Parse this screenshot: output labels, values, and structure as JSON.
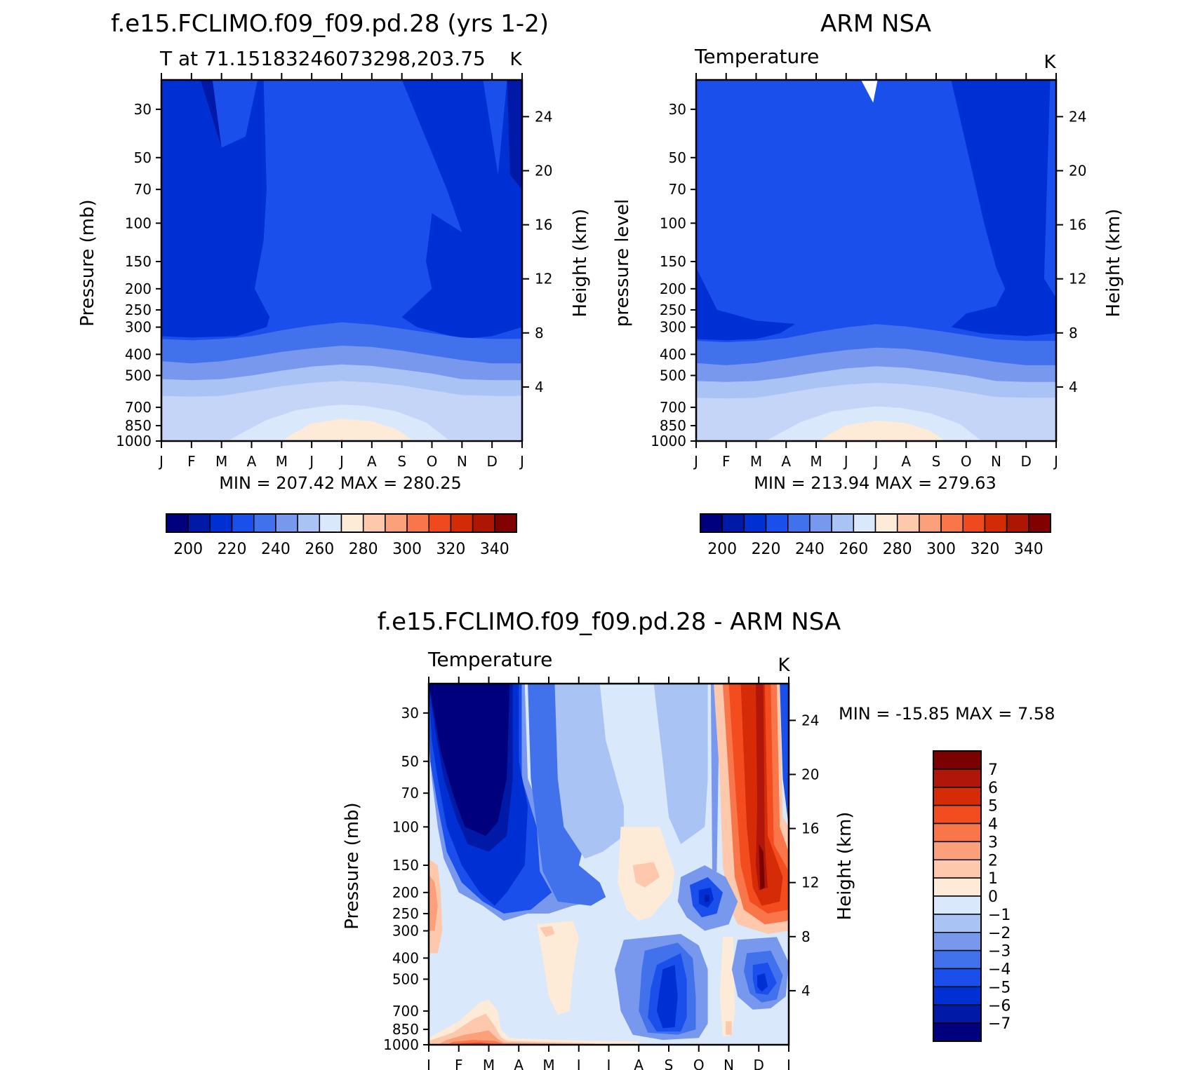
{
  "chart_data": [
    {
      "type": "heatmap",
      "id": "model",
      "title": "f.e15.FCLIMO.f09_f09.pd.28 (yrs 1-2)",
      "subtitle_left": "T at 71.15183246073298,203.75",
      "subtitle_right": "K",
      "ylabel": "Pressure (mb)",
      "ylabel_right": "Height (km)",
      "months": [
        "J",
        "F",
        "M",
        "A",
        "M",
        "J",
        "J",
        "A",
        "S",
        "O",
        "N",
        "D",
        "J"
      ],
      "pressure_ticks": [
        "30",
        "50",
        "70",
        "100",
        "150",
        "200",
        "250",
        "300",
        "400",
        "500",
        "700",
        "850",
        "1000"
      ],
      "height_ticks": [
        "24",
        "20",
        "16",
        "12",
        "8",
        "4"
      ],
      "stats": "MIN =  207.42  MAX =  280.25",
      "colorbar_labels": [
        "200",
        "220",
        "240",
        "260",
        "280",
        "300",
        "320",
        "340"
      ],
      "layers": [
        {
          "level": 262,
          "boundary": [
            [
              0,
              500
            ],
            [
              1,
              505
            ],
            [
              2,
              520
            ],
            [
              3,
              540
            ],
            [
              4,
              555
            ],
            [
              5,
              560
            ],
            [
              6,
              565
            ],
            [
              7,
              562
            ],
            [
              8,
              555
            ],
            [
              9,
              545
            ],
            [
              10,
              525
            ],
            [
              11,
              515
            ],
            [
              12,
              510
            ]
          ]
        },
        {
          "level": 270,
          "boundary": [
            [
              0,
              1000
            ],
            [
              1,
              1000
            ],
            [
              2,
              1000
            ],
            [
              2.5,
              990
            ],
            [
              3,
              890
            ],
            [
              4,
              790
            ],
            [
              5,
              740
            ],
            [
              6,
              725
            ],
            [
              7,
              735
            ],
            [
              8,
              760
            ],
            [
              9,
              830
            ],
            [
              10,
              1000
            ],
            [
              11,
              1000
            ],
            [
              12,
              1000
            ]
          ]
        },
        {
          "level": 276,
          "boundary": [
            [
              0,
              1000
            ],
            [
              3,
              1000
            ],
            [
              3.8,
              980
            ],
            [
              4.5,
              870
            ],
            [
              5.5,
              830
            ],
            [
              6,
              820
            ],
            [
              6.5,
              828
            ],
            [
              7.5,
              860
            ],
            [
              8.3,
              950
            ],
            [
              9,
              1000
            ],
            [
              12,
              1000
            ]
          ]
        }
      ],
      "vertical_bands": [
        {
          "level": 252,
          "boundary": [
            [
              0,
              340
            ],
            [
              1,
              370
            ],
            [
              2,
              380
            ],
            [
              3,
              360
            ],
            [
              4,
              345
            ],
            [
              5,
              330
            ],
            [
              6,
              320
            ],
            [
              7,
              328
            ],
            [
              8,
              345
            ],
            [
              9,
              365
            ],
            [
              10,
              380
            ],
            [
              11,
              370
            ],
            [
              12,
              360
            ]
          ]
        },
        {
          "level": 244,
          "boundary": [
            [
              0,
              400
            ],
            [
              1,
              420
            ],
            [
              2,
              430
            ],
            [
              3,
              420
            ],
            [
              4,
              405
            ],
            [
              5,
              390
            ],
            [
              6,
              382
            ],
            [
              7,
              388
            ],
            [
              8,
              405
            ],
            [
              9,
              430
            ],
            [
              10,
              450
            ],
            [
              11,
              445
            ],
            [
              12,
              440
            ]
          ]
        }
      ]
    },
    {
      "type": "heatmap",
      "id": "obs",
      "title": "ARM NSA",
      "subtitle_left": "Temperature",
      "subtitle_right": "K",
      "ylabel": "pressure level",
      "ylabel_right": "Height (km)",
      "months": [
        "J",
        "F",
        "M",
        "A",
        "M",
        "J",
        "J",
        "A",
        "S",
        "O",
        "N",
        "D",
        "J"
      ],
      "pressure_ticks": [
        "30",
        "50",
        "70",
        "100",
        "150",
        "200",
        "250",
        "300",
        "400",
        "500",
        "700",
        "850",
        "1000"
      ],
      "height_ticks": [
        "24",
        "20",
        "16",
        "12",
        "8",
        "4"
      ],
      "stats": "MIN =  213.94  MAX =  279.63",
      "colorbar_labels": [
        "200",
        "220",
        "240",
        "260",
        "280",
        "300",
        "320",
        "340"
      ]
    },
    {
      "type": "heatmap",
      "id": "diff",
      "title": "f.e15.FCLIMO.f09_f09.pd.28 - ARM NSA",
      "subtitle_left": "Temperature",
      "subtitle_right": "K",
      "ylabel": "Pressure (mb)",
      "ylabel_right": "Height (km)",
      "months": [
        "J",
        "F",
        "M",
        "A",
        "M",
        "J",
        "J",
        "A",
        "S",
        "O",
        "N",
        "D",
        "J"
      ],
      "pressure_ticks": [
        "30",
        "50",
        "70",
        "100",
        "150",
        "200",
        "250",
        "300",
        "400",
        "500",
        "700",
        "850",
        "1000"
      ],
      "height_ticks": [
        "24",
        "20",
        "16",
        "12",
        "8",
        "4"
      ],
      "stats": "MIN = -15.85  MAX =     7.58",
      "colorbar_labels": [
        "7",
        "6",
        "5",
        "4",
        "3",
        "2",
        "1",
        "0",
        "-1",
        "-2",
        "-3",
        "-4",
        "-5",
        "-6",
        "-7"
      ]
    }
  ],
  "palettes": {
    "abs": [
      "#00007f",
      "#0019a6",
      "#0030d4",
      "#1a4fec",
      "#4271ec",
      "#7898ee",
      "#aac3f5",
      "#d9e8fb",
      "#fdebd8",
      "#fdc8ac",
      "#fca07c",
      "#f8764a",
      "#f0491f",
      "#d42b07",
      "#ae1604",
      "#810000"
    ],
    "abs_fills": {
      "deep": "#0030d4",
      "main": "#1a4fec",
      "band1": "#4271ec",
      "band2": "#7898ee",
      "band3": "#aac3f5",
      "band4": "#d9e8fb",
      "warm": "#fdebd8"
    },
    "diff": [
      "#7b0000",
      "#b0170a",
      "#d62b07",
      "#f24c1f",
      "#f8764a",
      "#fca07c",
      "#fdc8ac",
      "#fdebd8",
      "#d9e8fb",
      "#aac3f5",
      "#7898ee",
      "#4271ec",
      "#1a4fec",
      "#0030d4",
      "#0019a6",
      "#00007f"
    ]
  }
}
